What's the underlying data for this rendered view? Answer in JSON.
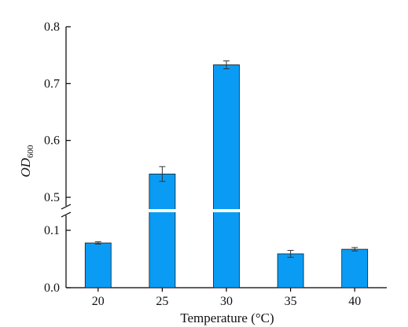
{
  "chart_data": {
    "type": "bar",
    "categories": [
      "20",
      "25",
      "30",
      "35",
      "40"
    ],
    "values": [
      0.078,
      0.541,
      0.733,
      0.059,
      0.067
    ],
    "errors": [
      0.002,
      0.013,
      0.007,
      0.006,
      0.003
    ],
    "xlabel": "Temperature (°C)",
    "ylabel": {
      "main": "OD",
      "sub": "600"
    },
    "y_ticks_lower": [
      {
        "value": 0.0,
        "label": "0.0"
      },
      {
        "value": 0.1,
        "label": "0.1"
      }
    ],
    "y_ticks_upper": [
      {
        "value": 0.5,
        "label": "0.5"
      },
      {
        "value": 0.6,
        "label": "0.6"
      },
      {
        "value": 0.7,
        "label": "0.7"
      },
      {
        "value": 0.8,
        "label": "0.8"
      }
    ],
    "ylim_lower": [
      0,
      0.1
    ],
    "ylim_upper": [
      0.5,
      0.8
    ],
    "axis_break": true,
    "grid": false,
    "legend": "none",
    "bar_color": "#0a9cf5",
    "bar_edge_color": "#1a1a1a"
  }
}
